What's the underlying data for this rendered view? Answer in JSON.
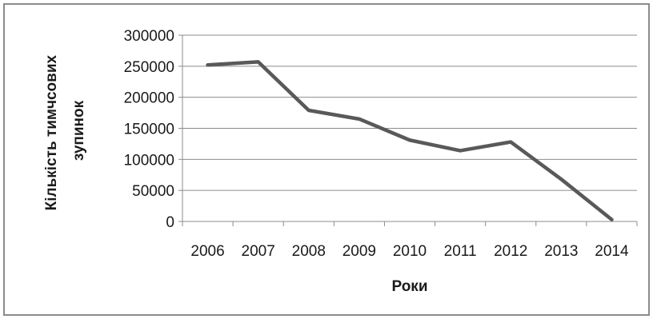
{
  "chart_data": {
    "type": "line",
    "title": "",
    "xlabel": "Роки",
    "ylabel": "Кількість тимчсових зупинок",
    "ylabel_lines": [
      "Кількість тимчсових",
      "зупинок"
    ],
    "categories": [
      "2006",
      "2007",
      "2008",
      "2009",
      "2010",
      "2011",
      "2012",
      "2013",
      "2014"
    ],
    "series": [
      {
        "values": [
          252000,
          257000,
          179000,
          165000,
          131000,
          114000,
          128000,
          68000,
          3000
        ]
      }
    ],
    "ylim": [
      0,
      300000
    ],
    "yticks": [
      "0",
      "50000",
      "100000",
      "150000",
      "200000",
      "250000",
      "300000"
    ],
    "grid": true,
    "legend": "none",
    "line_color": "#595959",
    "grid_color": "#8c8c8c"
  }
}
